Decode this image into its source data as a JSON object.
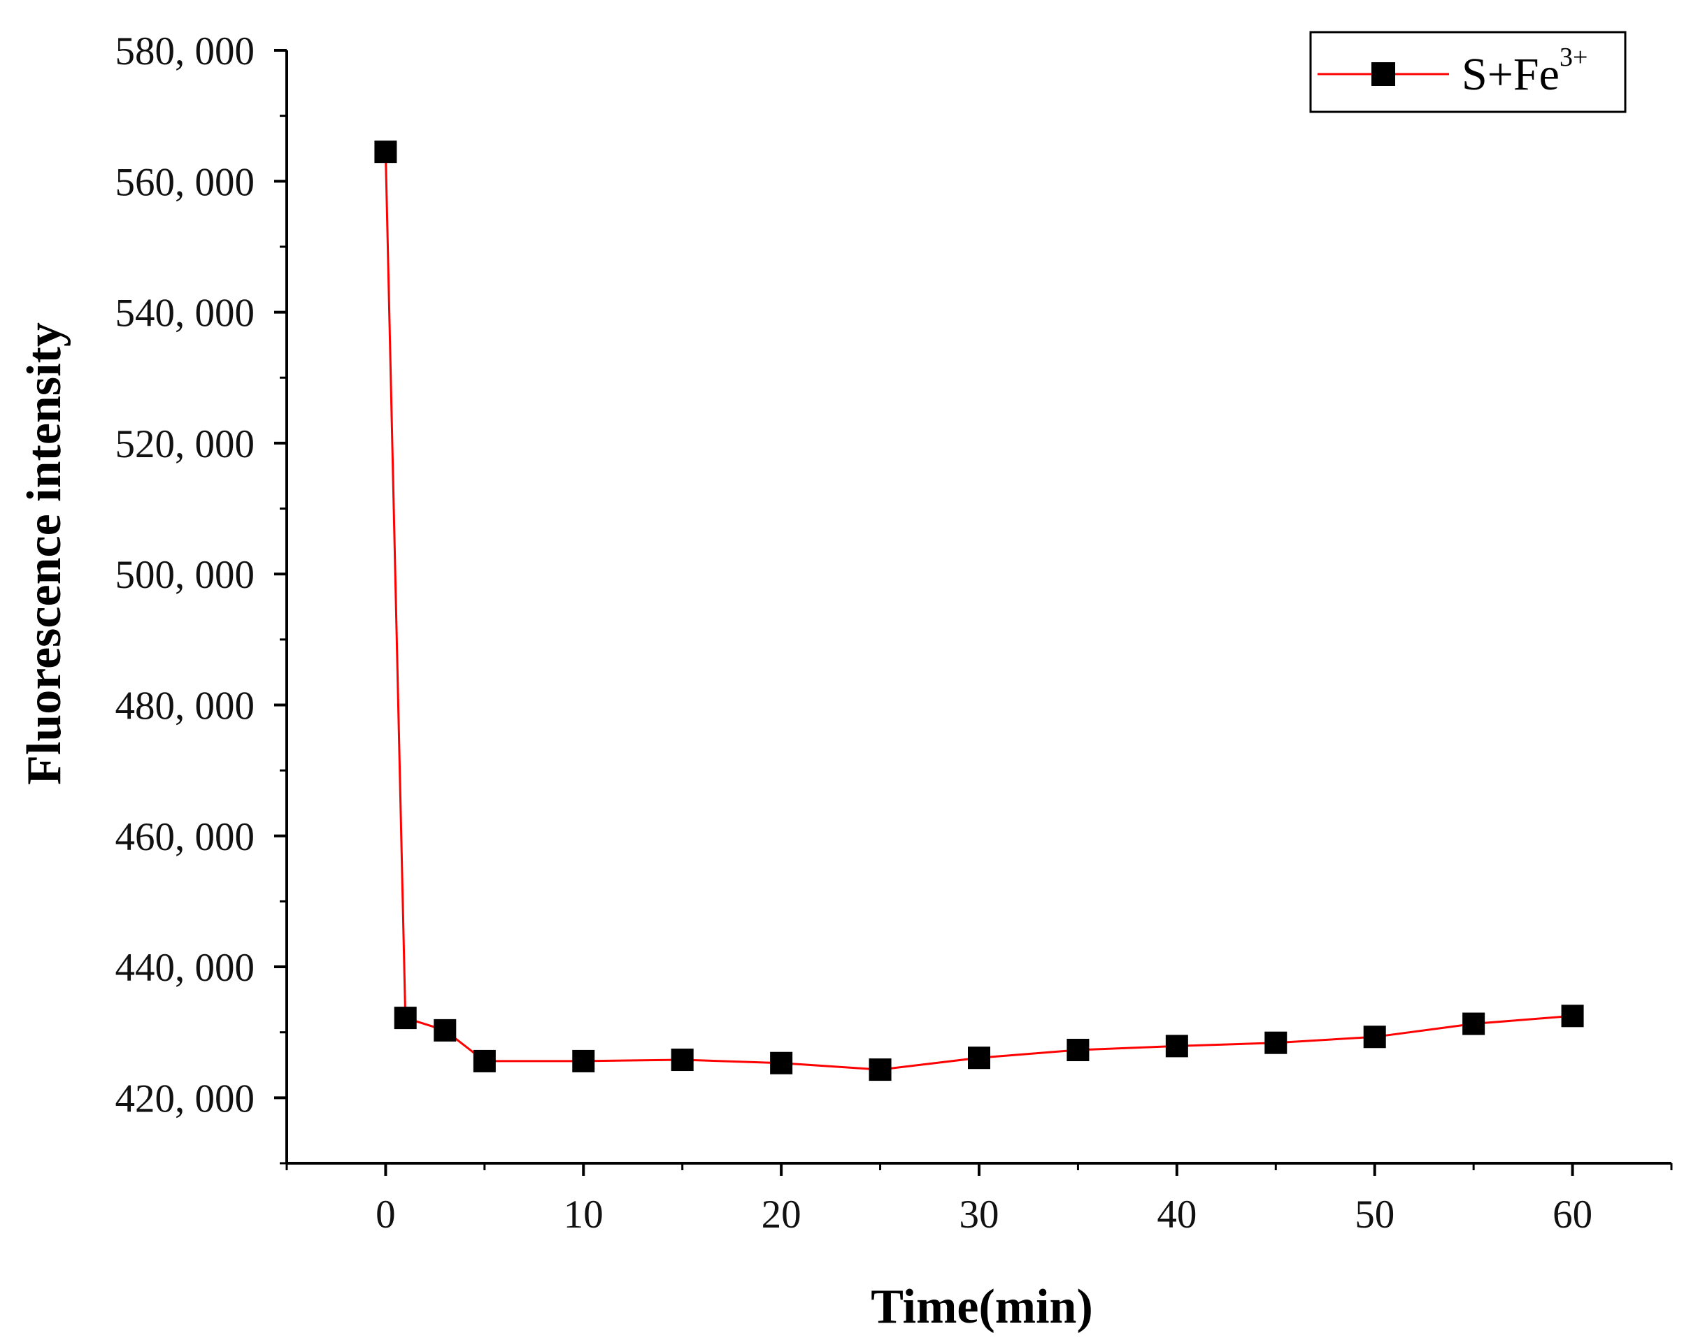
{
  "chart_data": {
    "type": "line",
    "title": "",
    "xlabel": "Time(min)",
    "ylabel": "Fluorescence intensity",
    "xlim": [
      -5,
      65
    ],
    "ylim": [
      410000,
      580000
    ],
    "x_ticks": [
      0,
      10,
      20,
      30,
      40,
      50,
      60
    ],
    "x_tick_labels": [
      "0",
      "10",
      "20",
      "30",
      "40",
      "50",
      "60"
    ],
    "y_ticks": [
      420000,
      440000,
      460000,
      480000,
      500000,
      520000,
      540000,
      560000,
      580000
    ],
    "y_tick_labels": [
      "420, 000",
      "440, 000",
      "460, 000",
      "480, 000",
      "500, 000",
      "520, 000",
      "540, 000",
      "560, 000",
      "580, 000"
    ],
    "grid": false,
    "legend_position": "top-right",
    "series": [
      {
        "name": "S+Fe3+",
        "legend_main": "S+Fe",
        "legend_sup": "3+",
        "line_color": "#ff0000",
        "marker_color": "#000000",
        "marker": "square",
        "x": [
          0,
          1,
          3,
          5,
          10,
          15,
          20,
          25,
          30,
          35,
          40,
          45,
          50,
          55,
          60
        ],
        "values": [
          564500,
          432200,
          430300,
          425600,
          425600,
          425800,
          425300,
          424300,
          426100,
          427300,
          427900,
          428400,
          429300,
          431300,
          432500
        ]
      }
    ]
  }
}
